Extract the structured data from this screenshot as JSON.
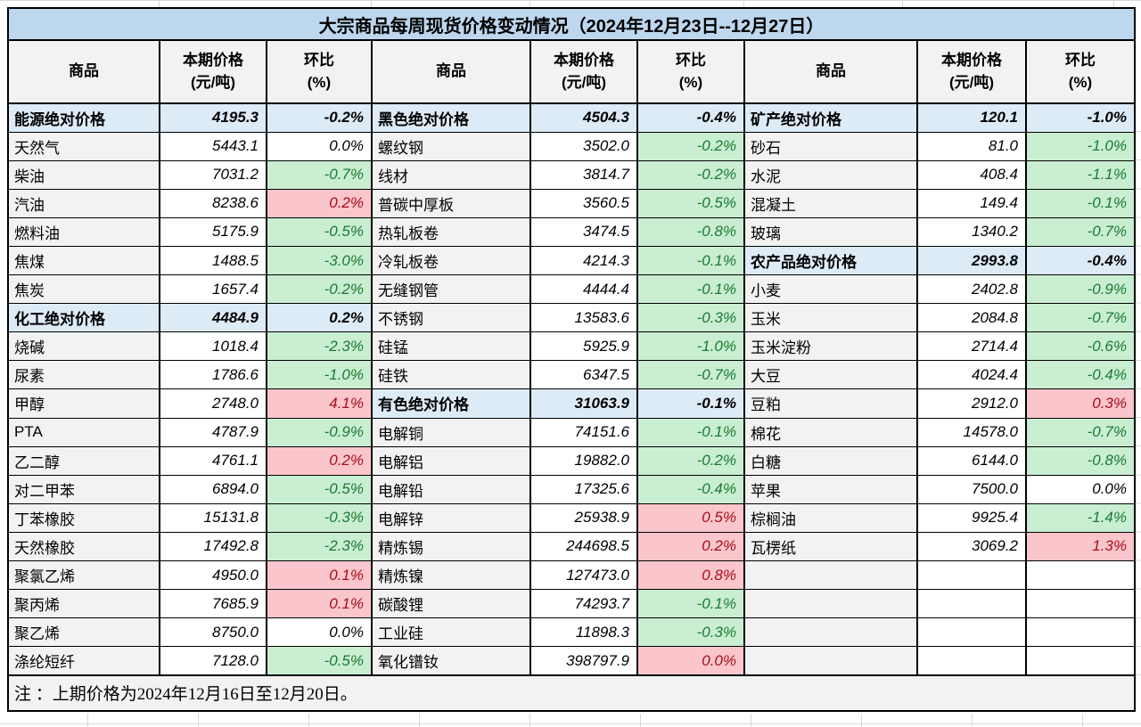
{
  "title": "大宗商品每周现货价格变动情况（2024年12月23日--12月27日）",
  "note": "注 ：上期价格为2024年12月16日至12月20日。",
  "header": {
    "commodity": "商品",
    "price_l1": "本期价格",
    "price_l2": "(元/吨)",
    "pct_l1": "环比",
    "pct_l2": "(%)"
  },
  "colors": {
    "title_bg": "#BDD7EE",
    "section_bg": "#DDEBF7",
    "label_bg": "#F2F2F2",
    "down_bg": "#C9EED2",
    "down_text": "#1B7A33",
    "up_bg": "#FBC6CB",
    "up_text": "#A50D19"
  },
  "groups": [
    {
      "rows": [
        {
          "name": "能源绝对价格",
          "price": "4195.3",
          "pct": "-0.2%",
          "kind": "section",
          "trend": "none"
        },
        {
          "name": "天然气",
          "price": "5443.1",
          "pct": "0.0%",
          "kind": "item",
          "trend": "flat"
        },
        {
          "name": "柴油",
          "price": "7031.2",
          "pct": "-0.7%",
          "kind": "item",
          "trend": "down"
        },
        {
          "name": "汽油",
          "price": "8238.6",
          "pct": "0.2%",
          "kind": "item",
          "trend": "up"
        },
        {
          "name": "燃料油",
          "price": "5175.9",
          "pct": "-0.5%",
          "kind": "item",
          "trend": "down"
        },
        {
          "name": "焦煤",
          "price": "1488.5",
          "pct": "-3.0%",
          "kind": "item",
          "trend": "down"
        },
        {
          "name": "焦炭",
          "price": "1657.4",
          "pct": "-0.2%",
          "kind": "item",
          "trend": "down"
        },
        {
          "name": "化工绝对价格",
          "price": "4484.9",
          "pct": "0.2%",
          "kind": "section",
          "trend": "none"
        },
        {
          "name": "烧碱",
          "price": "1018.4",
          "pct": "-2.3%",
          "kind": "item",
          "trend": "down"
        },
        {
          "name": "尿素",
          "price": "1786.6",
          "pct": "-1.0%",
          "kind": "item",
          "trend": "down"
        },
        {
          "name": "甲醇",
          "price": "2748.0",
          "pct": "4.1%",
          "kind": "item",
          "trend": "up"
        },
        {
          "name": "PTA",
          "price": "4787.9",
          "pct": "-0.9%",
          "kind": "item",
          "trend": "down"
        },
        {
          "name": "乙二醇",
          "price": "4761.1",
          "pct": "0.2%",
          "kind": "item",
          "trend": "up"
        },
        {
          "name": "对二甲苯",
          "price": "6894.0",
          "pct": "-0.5%",
          "kind": "item",
          "trend": "down"
        },
        {
          "name": "丁苯橡胶",
          "price": "15131.8",
          "pct": "-0.3%",
          "kind": "item",
          "trend": "down"
        },
        {
          "name": "天然橡胶",
          "price": "17492.8",
          "pct": "-2.3%",
          "kind": "item",
          "trend": "down"
        },
        {
          "name": "聚氯乙烯",
          "price": "4950.0",
          "pct": "0.1%",
          "kind": "item",
          "trend": "up"
        },
        {
          "name": "聚丙烯",
          "price": "7685.9",
          "pct": "0.1%",
          "kind": "item",
          "trend": "up"
        },
        {
          "name": "聚乙烯",
          "price": "8750.0",
          "pct": "0.0%",
          "kind": "item",
          "trend": "flat"
        },
        {
          "name": "涤纶短纤",
          "price": "7128.0",
          "pct": "-0.5%",
          "kind": "item",
          "trend": "down"
        }
      ]
    },
    {
      "rows": [
        {
          "name": "黑色绝对价格",
          "price": "4504.3",
          "pct": "-0.4%",
          "kind": "section",
          "trend": "none"
        },
        {
          "name": "螺纹钢",
          "price": "3502.0",
          "pct": "-0.2%",
          "kind": "item",
          "trend": "down"
        },
        {
          "name": "线材",
          "price": "3814.7",
          "pct": "-0.2%",
          "kind": "item",
          "trend": "down"
        },
        {
          "name": "普碳中厚板",
          "price": "3560.5",
          "pct": "-0.5%",
          "kind": "item",
          "trend": "down"
        },
        {
          "name": "热轧板卷",
          "price": "3474.5",
          "pct": "-0.8%",
          "kind": "item",
          "trend": "down"
        },
        {
          "name": "冷轧板卷",
          "price": "4214.3",
          "pct": "-0.1%",
          "kind": "item",
          "trend": "down"
        },
        {
          "name": "无缝钢管",
          "price": "4444.4",
          "pct": "-0.1%",
          "kind": "item",
          "trend": "down"
        },
        {
          "name": "不锈钢",
          "price": "13583.6",
          "pct": "-0.3%",
          "kind": "item",
          "trend": "down"
        },
        {
          "name": "硅锰",
          "price": "5925.9",
          "pct": "-1.0%",
          "kind": "item",
          "trend": "down"
        },
        {
          "name": "硅铁",
          "price": "6347.5",
          "pct": "-0.7%",
          "kind": "item",
          "trend": "down"
        },
        {
          "name": "有色绝对价格",
          "price": "31063.9",
          "pct": "-0.1%",
          "kind": "section",
          "trend": "none"
        },
        {
          "name": "电解铜",
          "price": "74151.6",
          "pct": "-0.1%",
          "kind": "item",
          "trend": "down"
        },
        {
          "name": "电解铝",
          "price": "19882.0",
          "pct": "-0.2%",
          "kind": "item",
          "trend": "down"
        },
        {
          "name": "电解铅",
          "price": "17325.6",
          "pct": "-0.4%",
          "kind": "item",
          "trend": "down"
        },
        {
          "name": "电解锌",
          "price": "25938.9",
          "pct": "0.5%",
          "kind": "item",
          "trend": "up"
        },
        {
          "name": "精炼锡",
          "price": "244698.5",
          "pct": "0.2%",
          "kind": "item",
          "trend": "up"
        },
        {
          "name": "精炼镍",
          "price": "127473.0",
          "pct": "0.8%",
          "kind": "item",
          "trend": "up"
        },
        {
          "name": "碳酸锂",
          "price": "74293.7",
          "pct": "-0.1%",
          "kind": "item",
          "trend": "down"
        },
        {
          "name": "工业硅",
          "price": "11898.3",
          "pct": "-0.3%",
          "kind": "item",
          "trend": "down"
        },
        {
          "name": "氧化镨钕",
          "price": "398797.9",
          "pct": "0.0%",
          "kind": "item",
          "trend": "up"
        }
      ]
    },
    {
      "rows": [
        {
          "name": "矿产绝对价格",
          "price": "120.1",
          "pct": "-1.0%",
          "kind": "section",
          "trend": "none"
        },
        {
          "name": "砂石",
          "price": "81.0",
          "pct": "-1.0%",
          "kind": "item",
          "trend": "down"
        },
        {
          "name": "水泥",
          "price": "408.4",
          "pct": "-1.1%",
          "kind": "item",
          "trend": "down"
        },
        {
          "name": "混凝土",
          "price": "149.4",
          "pct": "-0.1%",
          "kind": "item",
          "trend": "down"
        },
        {
          "name": "玻璃",
          "price": "1340.2",
          "pct": "-0.7%",
          "kind": "item",
          "trend": "down"
        },
        {
          "name": "农产品绝对价格",
          "price": "2993.8",
          "pct": "-0.4%",
          "kind": "section",
          "trend": "none"
        },
        {
          "name": "小麦",
          "price": "2402.8",
          "pct": "-0.9%",
          "kind": "item",
          "trend": "down"
        },
        {
          "name": "玉米",
          "price": "2084.8",
          "pct": "-0.7%",
          "kind": "item",
          "trend": "down"
        },
        {
          "name": "玉米淀粉",
          "price": "2714.4",
          "pct": "-0.6%",
          "kind": "item",
          "trend": "down"
        },
        {
          "name": "大豆",
          "price": "4024.4",
          "pct": "-0.4%",
          "kind": "item",
          "trend": "down"
        },
        {
          "name": "豆粕",
          "price": "2912.0",
          "pct": "0.3%",
          "kind": "item",
          "trend": "up"
        },
        {
          "name": "棉花",
          "price": "14578.0",
          "pct": "-0.7%",
          "kind": "item",
          "trend": "down"
        },
        {
          "name": "白糖",
          "price": "6144.0",
          "pct": "-0.8%",
          "kind": "item",
          "trend": "down"
        },
        {
          "name": "苹果",
          "price": "7500.0",
          "pct": "0.0%",
          "kind": "item",
          "trend": "flat"
        },
        {
          "name": "棕榈油",
          "price": "9925.4",
          "pct": "-1.4%",
          "kind": "item",
          "trend": "down"
        },
        {
          "name": "瓦楞纸",
          "price": "3069.2",
          "pct": "1.3%",
          "kind": "item",
          "trend": "up"
        },
        {
          "name": "",
          "price": "",
          "pct": "",
          "kind": "empty",
          "trend": "flat"
        },
        {
          "name": "",
          "price": "",
          "pct": "",
          "kind": "empty",
          "trend": "flat"
        },
        {
          "name": "",
          "price": "",
          "pct": "",
          "kind": "empty",
          "trend": "flat"
        },
        {
          "name": "",
          "price": "",
          "pct": "",
          "kind": "empty",
          "trend": "flat"
        }
      ]
    }
  ]
}
